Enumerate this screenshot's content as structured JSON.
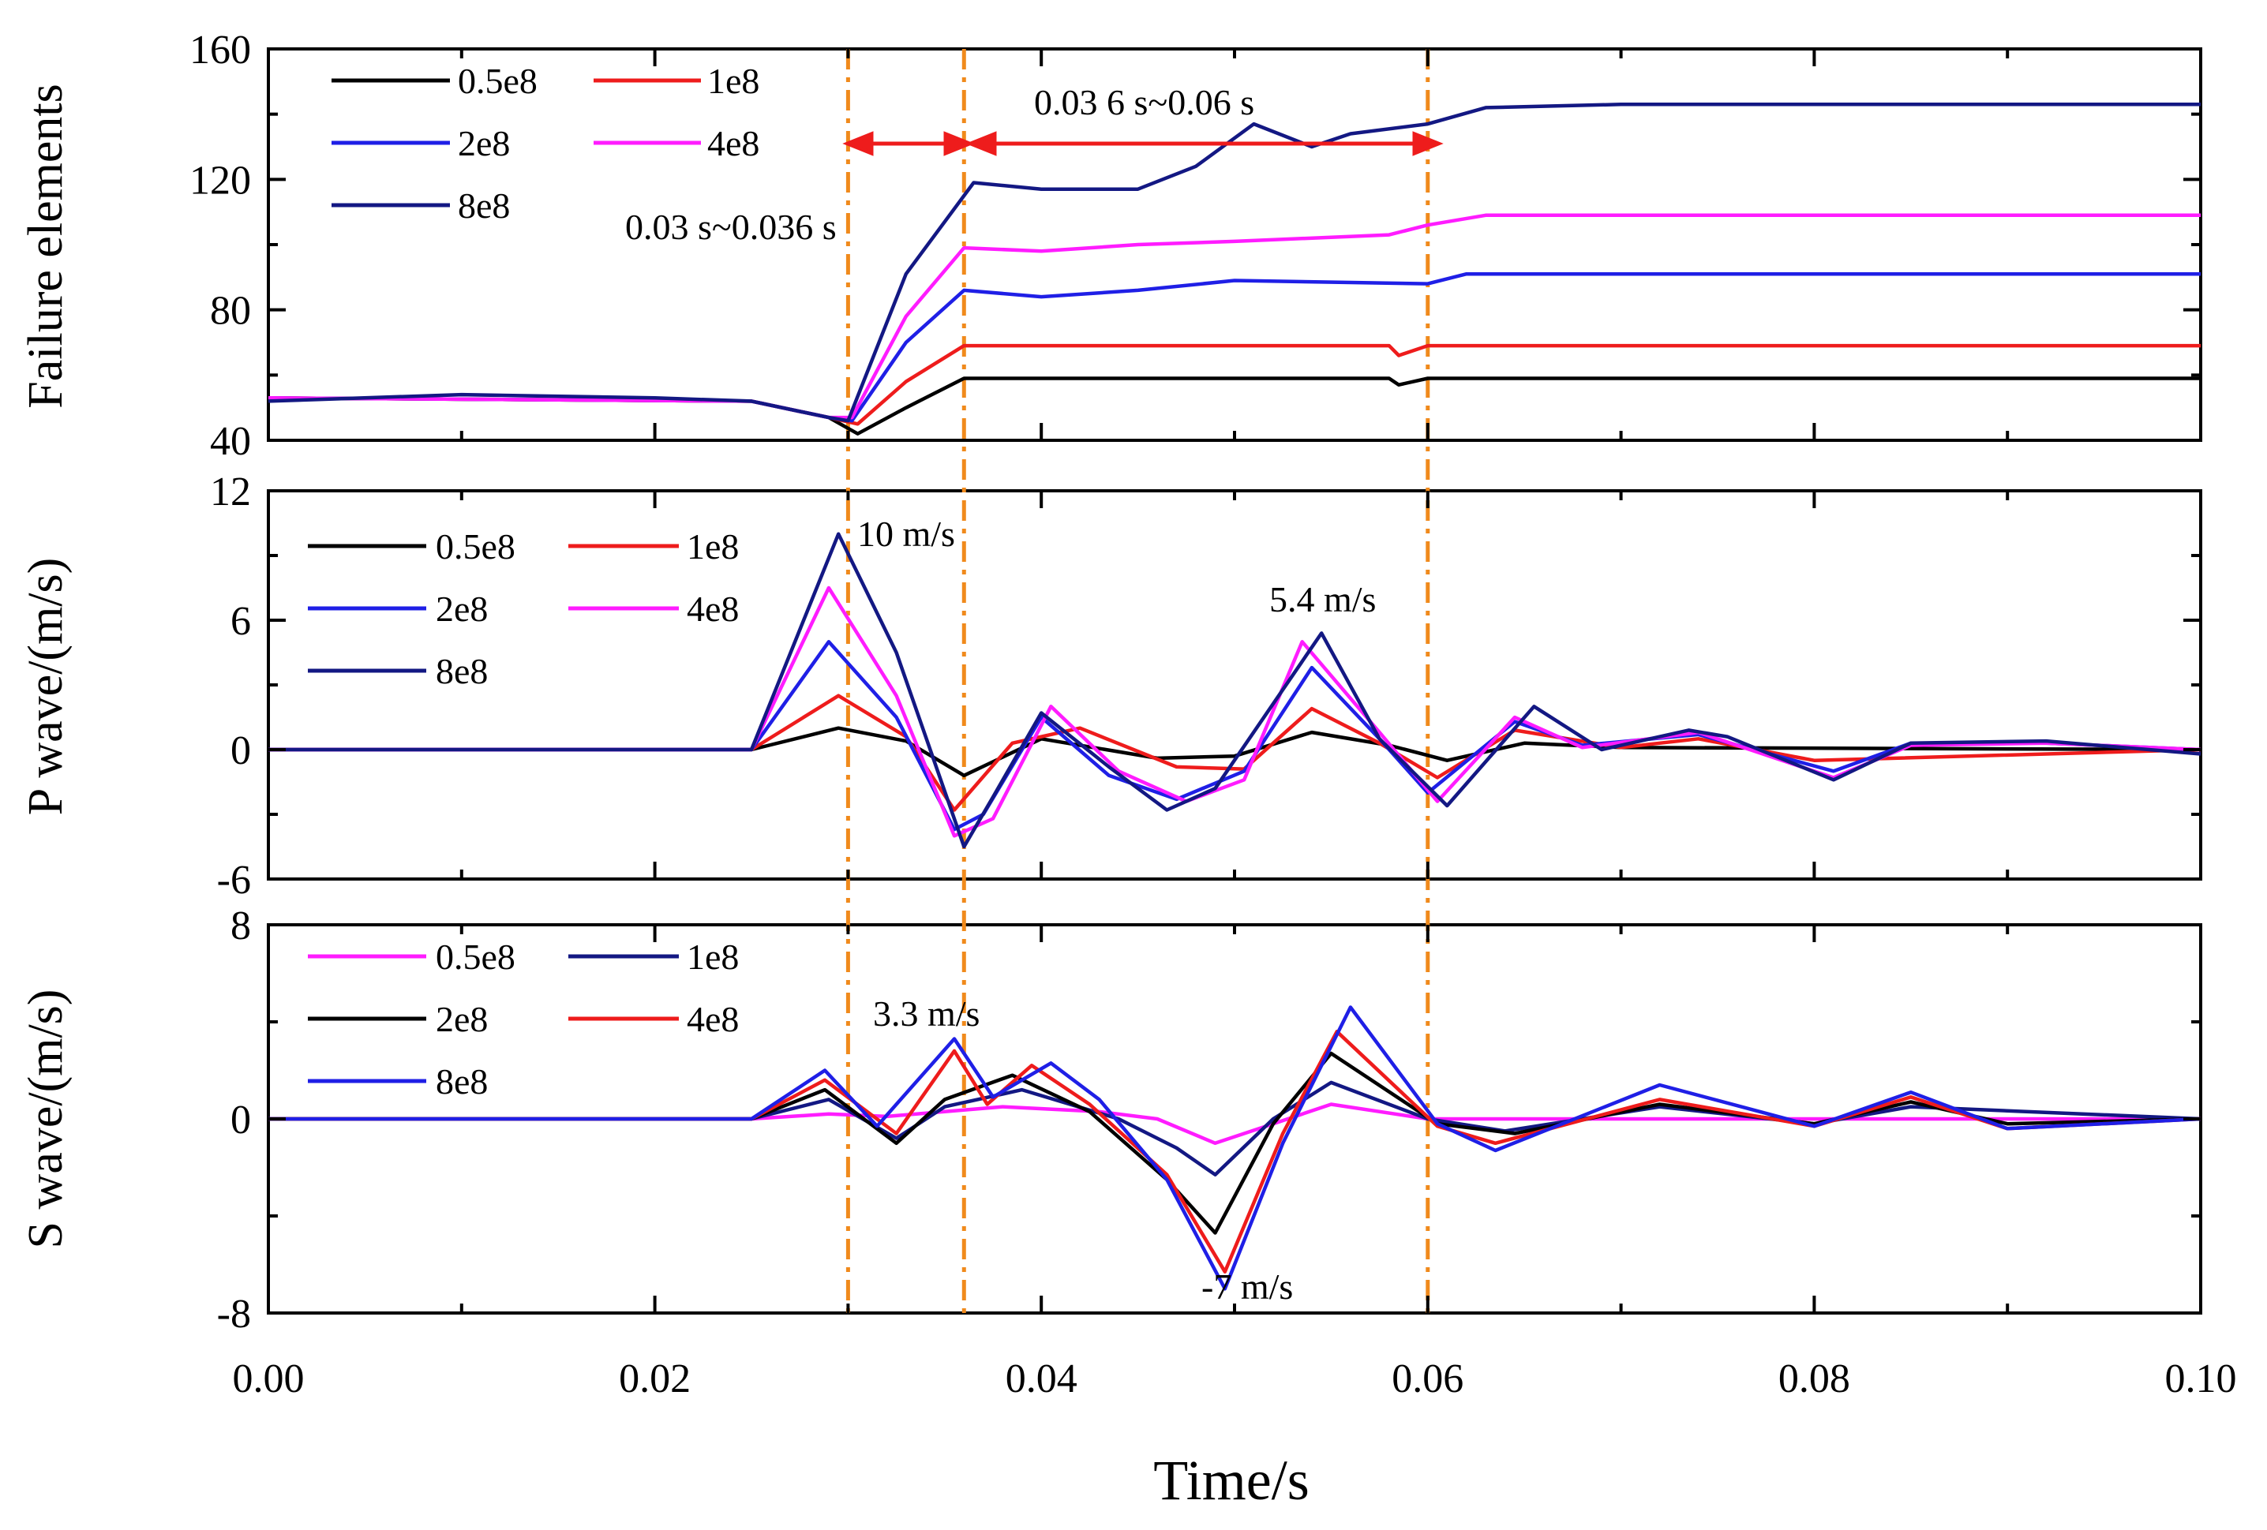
{
  "chart_data": [
    {
      "panel": "top",
      "type": "line",
      "ylabel": "Failure elements",
      "ylim": [
        40,
        160
      ],
      "yticks": [
        "160",
        "120",
        "80",
        "40"
      ],
      "legend": [
        "0.5e8",
        "1e8",
        "2e8",
        "4e8",
        "8e8"
      ],
      "colors": [
        "#000000",
        "#ee1c1c",
        "#1f1fe6",
        "#ff1cff",
        "#131883"
      ],
      "annotations": [
        "0.03 6 s~0.06 s",
        "0.03 s~0.036 s"
      ],
      "series": [
        {
          "name": "0.5e8",
          "x": [
            0,
            0.025,
            0.029,
            0.0305,
            0.033,
            0.036,
            0.058,
            0.0585,
            0.06,
            0.1
          ],
          "values": [
            53,
            52,
            47,
            42,
            50,
            59,
            59,
            57,
            59,
            59
          ]
        },
        {
          "name": "1e8",
          "x": [
            0,
            0.025,
            0.029,
            0.0305,
            0.033,
            0.036,
            0.058,
            0.0585,
            0.06,
            0.1
          ],
          "values": [
            53,
            52,
            47,
            45,
            58,
            69,
            69,
            66,
            69,
            69
          ]
        },
        {
          "name": "2e8",
          "x": [
            0,
            0.025,
            0.029,
            0.0302,
            0.033,
            0.036,
            0.04,
            0.045,
            0.05,
            0.06,
            0.062,
            0.1
          ],
          "values": [
            53,
            52,
            47,
            46,
            70,
            86,
            84,
            86,
            89,
            88,
            91,
            91
          ]
        },
        {
          "name": "4e8",
          "x": [
            0,
            0.025,
            0.029,
            0.0302,
            0.033,
            0.036,
            0.04,
            0.045,
            0.05,
            0.058,
            0.06,
            0.063,
            0.1
          ],
          "values": [
            53,
            52,
            47,
            47,
            78,
            99,
            98,
            100,
            101,
            103,
            106,
            109,
            109
          ]
        },
        {
          "name": "8e8",
          "x": [
            0,
            0.01,
            0.02,
            0.025,
            0.029,
            0.03,
            0.033,
            0.0365,
            0.04,
            0.045,
            0.048,
            0.051,
            0.054,
            0.056,
            0.06,
            0.063,
            0.07,
            0.1
          ],
          "values": [
            52,
            54,
            53,
            52,
            47,
            46,
            91,
            119,
            117,
            117,
            124,
            137,
            130,
            134,
            137,
            142,
            143,
            143
          ]
        }
      ]
    },
    {
      "panel": "middle",
      "type": "line",
      "ylabel": "P wave/(m/s)",
      "ylim": [
        -6,
        12
      ],
      "yticks": [
        "12",
        "6",
        "0",
        "-6"
      ],
      "legend": [
        "0.5e8",
        "1e8",
        "2e8",
        "4e8",
        "8e8"
      ],
      "colors": [
        "#000000",
        "#ee1c1c",
        "#1f1fe6",
        "#ff1cff",
        "#131883"
      ],
      "annotations": [
        "10 m/s",
        "5.4 m/s"
      ],
      "series": [
        {
          "name": "0.5e8",
          "x": [
            0,
            0.025,
            0.0295,
            0.033,
            0.036,
            0.04,
            0.046,
            0.05,
            0.054,
            0.058,
            0.061,
            0.065,
            0.07,
            0.1
          ],
          "values": [
            0,
            0,
            1.0,
            0.4,
            -1.2,
            0.5,
            -0.4,
            -0.3,
            0.8,
            0.2,
            -0.5,
            0.3,
            0.1,
            0
          ]
        },
        {
          "name": "1e8",
          "x": [
            0,
            0.025,
            0.0295,
            0.033,
            0.0355,
            0.0385,
            0.042,
            0.047,
            0.0505,
            0.054,
            0.0575,
            0.0605,
            0.0645,
            0.07,
            0.074,
            0.08,
            0.1
          ],
          "values": [
            0,
            0,
            2.5,
            0.6,
            -2.8,
            0.3,
            1.0,
            -0.8,
            -0.9,
            1.9,
            0.3,
            -1.3,
            0.9,
            0.1,
            0.5,
            -0.5,
            0
          ]
        },
        {
          "name": "2e8",
          "x": [
            0,
            0.025,
            0.029,
            0.0325,
            0.0355,
            0.037,
            0.04,
            0.0435,
            0.047,
            0.0505,
            0.054,
            0.0575,
            0.06,
            0.0645,
            0.068,
            0.074,
            0.081,
            0.085,
            0.092,
            0.1
          ],
          "values": [
            0,
            0,
            5.0,
            1.5,
            -3.7,
            -3.0,
            1.5,
            -1.2,
            -2.3,
            -1.0,
            3.8,
            0.5,
            -2.0,
            1.3,
            0.2,
            0.7,
            -1.0,
            0.3,
            0.3,
            0
          ]
        },
        {
          "name": "4e8",
          "x": [
            0,
            0.025,
            0.029,
            0.0325,
            0.0355,
            0.0375,
            0.0405,
            0.044,
            0.0475,
            0.0505,
            0.0535,
            0.0575,
            0.0605,
            0.0645,
            0.068,
            0.074,
            0.081,
            0.085,
            0.092,
            0.1
          ],
          "values": [
            0,
            0,
            7.5,
            2.5,
            -4.0,
            -3.2,
            2.0,
            -1.0,
            -2.4,
            -1.4,
            5.0,
            0.8,
            -2.4,
            1.5,
            0.1,
            0.8,
            -1.3,
            0.2,
            0.3,
            0
          ]
        },
        {
          "name": "8e8",
          "x": [
            0,
            0.025,
            0.0295,
            0.0325,
            0.036,
            0.0375,
            0.04,
            0.0435,
            0.0465,
            0.049,
            0.0545,
            0.0575,
            0.061,
            0.0655,
            0.069,
            0.0735,
            0.0755,
            0.081,
            0.085,
            0.092,
            0.1
          ],
          "values": [
            0,
            0,
            10.0,
            4.5,
            -4.5,
            -2.2,
            1.7,
            -0.8,
            -2.8,
            -1.8,
            5.4,
            0.5,
            -2.6,
            2.0,
            0.0,
            0.9,
            0.6,
            -1.4,
            0.3,
            0.4,
            -0.2
          ]
        }
      ]
    },
    {
      "panel": "bottom",
      "type": "line",
      "ylabel": "S wave/(m/s)",
      "xlabel": "Time/s",
      "xlim": [
        0,
        0.1
      ],
      "xticks": [
        "0.00",
        "0.02",
        "0.04",
        "0.06",
        "0.08",
        "0.10"
      ],
      "ylim": [
        -8,
        8
      ],
      "yticks": [
        "8",
        "0",
        "-8"
      ],
      "legend": [
        "0.5e8",
        "1e8",
        "2e8",
        "4e8",
        "8e8"
      ],
      "colors": [
        "#ff1cff",
        "#131883",
        "#000000",
        "#ee1c1c",
        "#1f1fe6"
      ],
      "annotations": [
        "3.3 m/s",
        "-7 m/s"
      ],
      "series": [
        {
          "name": "0.5e8",
          "x": [
            0,
            0.025,
            0.029,
            0.032,
            0.038,
            0.043,
            0.046,
            0.049,
            0.052,
            0.055,
            0.06,
            0.1
          ],
          "values": [
            0,
            0,
            0.2,
            0.1,
            0.5,
            0.3,
            0,
            -1.0,
            -0.2,
            0.6,
            0,
            0
          ]
        },
        {
          "name": "1e8",
          "x": [
            0,
            0.025,
            0.029,
            0.0325,
            0.035,
            0.039,
            0.044,
            0.047,
            0.049,
            0.052,
            0.055,
            0.06,
            0.064,
            0.072,
            0.08,
            0.085,
            0.1
          ],
          "values": [
            0,
            0,
            0.8,
            -0.8,
            0.5,
            1.2,
            0,
            -1.2,
            -2.3,
            0,
            1.5,
            0,
            -0.5,
            0.5,
            -0.2,
            0.5,
            0
          ]
        },
        {
          "name": "2e8",
          "x": [
            0,
            0.025,
            0.0288,
            0.0325,
            0.035,
            0.0385,
            0.0425,
            0.0465,
            0.049,
            0.052,
            0.055,
            0.0605,
            0.0645,
            0.072,
            0.08,
            0.085,
            0.09,
            0.1
          ],
          "values": [
            0,
            0,
            1.2,
            -1.0,
            0.8,
            1.8,
            0.3,
            -2.5,
            -4.7,
            -0.2,
            2.7,
            -0.2,
            -0.6,
            0.6,
            -0.2,
            0.7,
            -0.2,
            0
          ]
        },
        {
          "name": "4e8",
          "x": [
            0,
            0.025,
            0.0288,
            0.0325,
            0.0355,
            0.0372,
            0.0395,
            0.0425,
            0.0465,
            0.0495,
            0.0525,
            0.0553,
            0.0605,
            0.0635,
            0.072,
            0.08,
            0.085,
            0.09,
            0.1
          ],
          "values": [
            0,
            0,
            1.6,
            -0.6,
            2.8,
            0.6,
            2.2,
            0.6,
            -2.3,
            -6.3,
            -0.6,
            3.6,
            -0.3,
            -1.0,
            0.8,
            -0.3,
            0.9,
            -0.4,
            0
          ]
        },
        {
          "name": "8e8",
          "x": [
            0,
            0.025,
            0.0288,
            0.0315,
            0.0355,
            0.0375,
            0.0405,
            0.043,
            0.0465,
            0.0495,
            0.0525,
            0.056,
            0.0605,
            0.0635,
            0.072,
            0.08,
            0.085,
            0.09,
            0.1
          ],
          "values": [
            0,
            0,
            2.0,
            -0.3,
            3.3,
            0.9,
            2.3,
            0.8,
            -2.5,
            -7.0,
            -1.0,
            4.6,
            -0.2,
            -1.3,
            1.4,
            -0.3,
            1.1,
            -0.4,
            0
          ]
        }
      ]
    }
  ],
  "vlines": {
    "times": [
      0.03,
      0.036,
      0.06
    ],
    "color": "#f08a1c"
  }
}
